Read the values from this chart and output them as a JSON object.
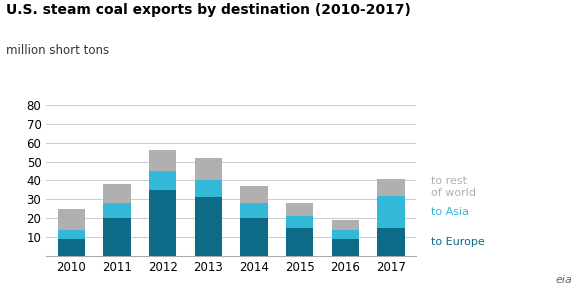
{
  "years": [
    2010,
    2011,
    2012,
    2013,
    2014,
    2015,
    2016,
    2017
  ],
  "to_europe": [
    9,
    20,
    35,
    31,
    20,
    15,
    9,
    15
  ],
  "to_asia": [
    5,
    8,
    10,
    9,
    8,
    6,
    5,
    17
  ],
  "to_rest_of_world": [
    11,
    10,
    11,
    12,
    9,
    7,
    5,
    9
  ],
  "color_europe": "#0e6b88",
  "color_asia": "#33b8d8",
  "color_rest": "#b0b0b0",
  "title": "U.S. steam coal exports by destination (2010-2017)",
  "subtitle": "million short tons",
  "ylim": [
    0,
    80
  ],
  "yticks": [
    0,
    10,
    20,
    30,
    40,
    50,
    60,
    70,
    80
  ],
  "legend_europe": "to Europe",
  "legend_asia": "to Asia",
  "legend_rest": "to rest\nof world",
  "background_color": "#ffffff",
  "grid_color": "#cccccc",
  "title_fontsize": 10,
  "subtitle_fontsize": 8.5,
  "tick_fontsize": 8.5,
  "legend_fontsize": 8
}
